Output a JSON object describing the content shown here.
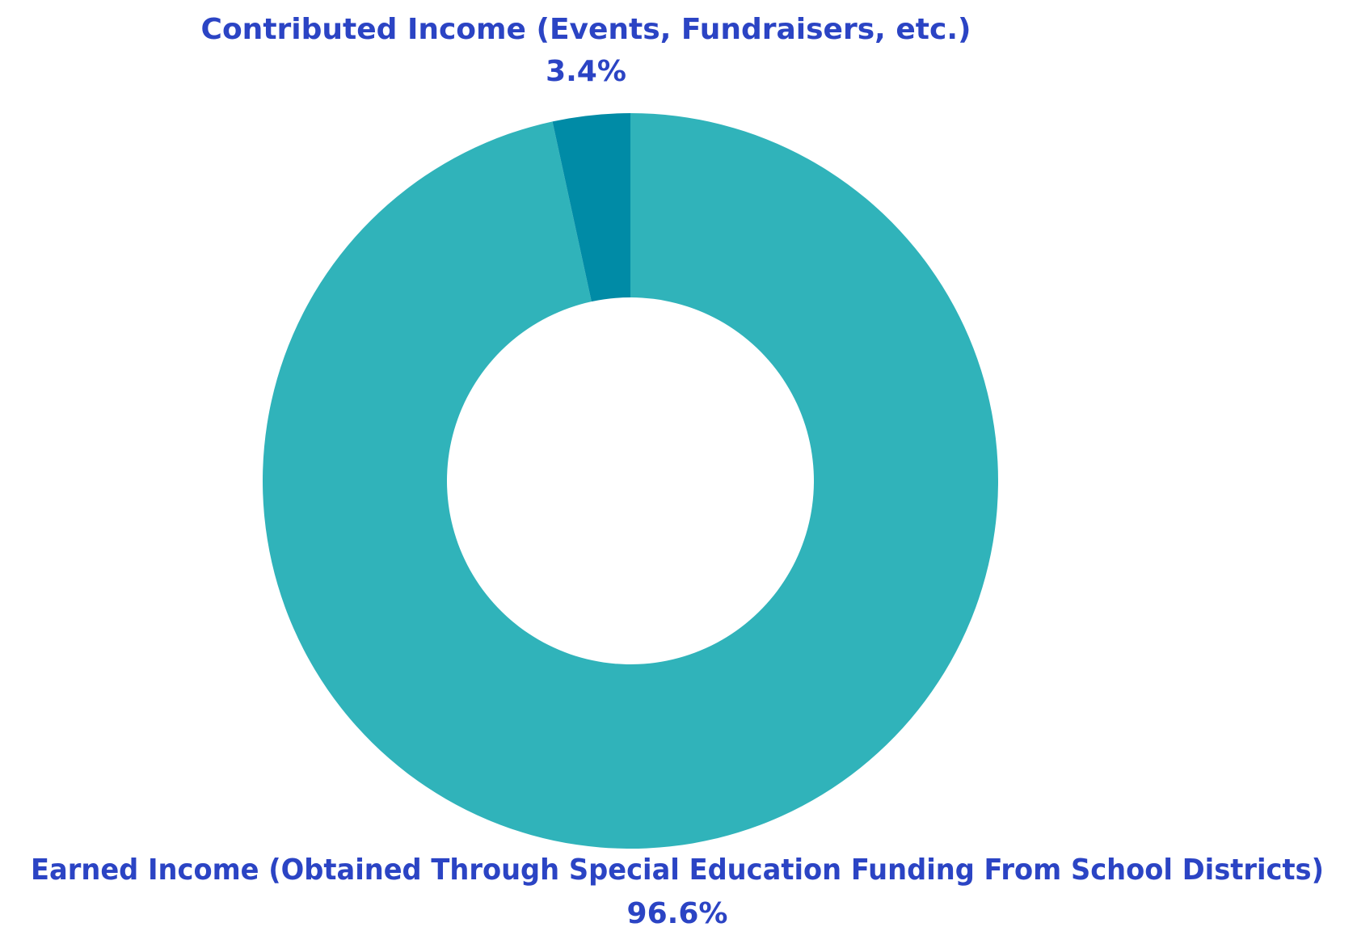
{
  "chart_data": {
    "type": "pie",
    "style": "donut",
    "start_angle": "12 o'clock",
    "direction": "clockwise",
    "title": "",
    "slices": [
      {
        "label": "Earned Income (Obtained Through Special Education Funding From School Districts)",
        "value": 96.6,
        "value_label": "96.6%",
        "color": "#30b3ba"
      },
      {
        "label": "Contributed Income (Events, Fundraisers, etc.)",
        "value": 3.4,
        "value_label": "3.4%",
        "color": "#008ba6"
      }
    ],
    "label_color": "#2b44c4",
    "background": "#ffffff"
  }
}
